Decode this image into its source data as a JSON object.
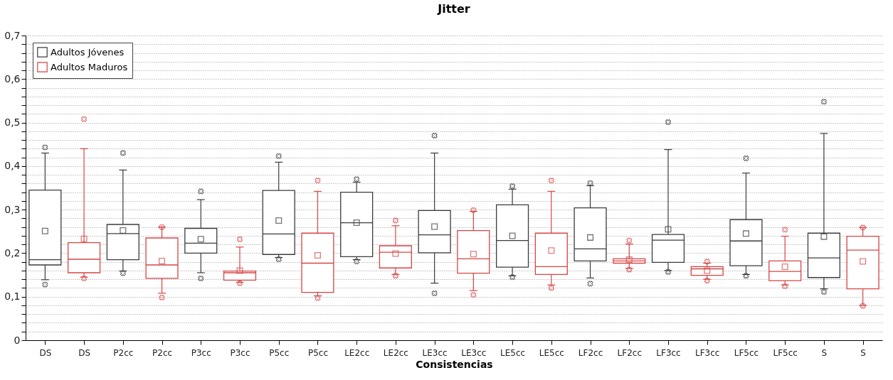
{
  "chart_data": {
    "type": "box",
    "title": "Jitter",
    "xlabel": "Consistencias",
    "categories": [
      "DS",
      "DS",
      "P2cc",
      "P2cc",
      "P3cc",
      "P3cc",
      "P5cc",
      "P5cc",
      "LE2cc",
      "LE2cc",
      "LE3cc",
      "LE3cc",
      "LE5cc",
      "LE5cc",
      "LF2cc",
      "LF2cc",
      "LF3cc",
      "LF3cc",
      "LF5cc",
      "LF5cc",
      "S",
      "S"
    ],
    "series": [
      {
        "name": "Adultos Jóvenes",
        "color": "#3c3c3c",
        "boxes": [
          {
            "low": 0.139,
            "q1": 0.173,
            "median": 0.185,
            "q3": 0.345,
            "high": 0.43,
            "mean": 0.251,
            "outliers": [
              0.443,
              0.128
            ]
          },
          null,
          {
            "low": 0.159,
            "q1": 0.185,
            "median": 0.245,
            "q3": 0.266,
            "high": 0.391,
            "mean": 0.252,
            "outliers": [
              0.43,
              0.154
            ]
          },
          null,
          {
            "low": 0.155,
            "q1": 0.2,
            "median": 0.223,
            "q3": 0.257,
            "high": 0.323,
            "mean": 0.232,
            "outliers": [
              0.342,
              0.142
            ]
          },
          null,
          {
            "low": 0.19,
            "q1": 0.197,
            "median": 0.244,
            "q3": 0.344,
            "high": 0.409,
            "mean": 0.275,
            "outliers": [
              0.423,
              0.186
            ]
          },
          null,
          {
            "low": 0.185,
            "q1": 0.192,
            "median": 0.27,
            "q3": 0.34,
            "high": 0.363,
            "mean": 0.27,
            "outliers": [
              0.37,
              0.181
            ]
          },
          null,
          {
            "low": 0.131,
            "q1": 0.201,
            "median": 0.242,
            "q3": 0.298,
            "high": 0.43,
            "mean": 0.261,
            "outliers": [
              0.47,
              0.108
            ]
          },
          null,
          {
            "low": 0.148,
            "q1": 0.168,
            "median": 0.229,
            "q3": 0.311,
            "high": 0.347,
            "mean": 0.24,
            "outliers": [
              0.354,
              0.145
            ]
          },
          null,
          {
            "low": 0.143,
            "q1": 0.182,
            "median": 0.21,
            "q3": 0.304,
            "high": 0.355,
            "mean": 0.236,
            "outliers": [
              0.361,
              0.13
            ]
          },
          null,
          {
            "low": 0.16,
            "q1": 0.179,
            "median": 0.23,
            "q3": 0.243,
            "high": 0.438,
            "mean": 0.255,
            "outliers": [
              0.501,
              0.157
            ]
          },
          null,
          {
            "low": 0.151,
            "q1": 0.171,
            "median": 0.228,
            "q3": 0.277,
            "high": 0.384,
            "mean": 0.245,
            "outliers": [
              0.418,
              0.148
            ]
          },
          null,
          {
            "low": 0.118,
            "q1": 0.144,
            "median": 0.189,
            "q3": 0.246,
            "high": 0.475,
            "mean": 0.238,
            "outliers": [
              0.548,
              0.111
            ]
          },
          null
        ]
      },
      {
        "name": "Adultos Maduros",
        "color": "#d64545",
        "boxes": [
          null,
          {
            "low": 0.145,
            "q1": 0.155,
            "median": 0.186,
            "q3": 0.224,
            "high": 0.44,
            "mean": 0.233,
            "outliers": [
              0.508,
              0.142
            ]
          },
          null,
          {
            "low": 0.108,
            "q1": 0.142,
            "median": 0.173,
            "q3": 0.235,
            "high": 0.26,
            "mean": 0.182,
            "outliers": [
              0.26,
              0.098
            ]
          },
          null,
          {
            "low": 0.133,
            "q1": 0.138,
            "median": 0.155,
            "q3": 0.159,
            "high": 0.214,
            "mean": 0.16,
            "outliers": [
              0.232,
              0.131
            ]
          },
          null,
          {
            "low": 0.102,
            "q1": 0.11,
            "median": 0.177,
            "q3": 0.246,
            "high": 0.342,
            "mean": 0.195,
            "outliers": [
              0.367,
              0.097
            ]
          },
          null,
          {
            "low": 0.151,
            "q1": 0.166,
            "median": 0.202,
            "q3": 0.217,
            "high": 0.263,
            "mean": 0.199,
            "outliers": [
              0.275,
              0.148
            ]
          },
          null,
          {
            "low": 0.114,
            "q1": 0.154,
            "median": 0.187,
            "q3": 0.252,
            "high": 0.296,
            "mean": 0.198,
            "outliers": [
              0.299,
              0.104
            ]
          },
          null,
          {
            "low": 0.127,
            "q1": 0.151,
            "median": 0.169,
            "q3": 0.246,
            "high": 0.342,
            "mean": 0.206,
            "outliers": [
              0.367,
              0.12
            ]
          },
          null,
          {
            "low": 0.165,
            "q1": 0.177,
            "median": 0.182,
            "q3": 0.187,
            "high": 0.221,
            "mean": 0.185,
            "outliers": [
              0.229,
              0.162
            ]
          },
          null,
          {
            "low": 0.14,
            "q1": 0.149,
            "median": 0.164,
            "q3": 0.169,
            "high": 0.177,
            "mean": 0.16,
            "outliers": [
              0.181,
              0.137
            ]
          },
          null,
          {
            "low": 0.127,
            "q1": 0.137,
            "median": 0.158,
            "q3": 0.182,
            "high": 0.239,
            "mean": 0.169,
            "outliers": [
              0.254,
              0.124
            ]
          },
          null,
          {
            "low": 0.08,
            "q1": 0.118,
            "median": 0.207,
            "q3": 0.239,
            "high": 0.259,
            "mean": 0.181,
            "outliers": [
              0.259,
              0.079
            ]
          }
        ]
      }
    ],
    "ylim": [
      0,
      0.7
    ],
    "yticks": [
      {
        "value": 0,
        "label": "0"
      },
      {
        "value": 0.02,
        "label": null
      },
      {
        "value": 0.04,
        "label": null
      },
      {
        "value": 0.06,
        "label": null
      },
      {
        "value": 0.08,
        "label": null
      },
      {
        "value": 0.1,
        "label": "0,1"
      },
      {
        "value": 0.12,
        "label": null
      },
      {
        "value": 0.14,
        "label": null
      },
      {
        "value": 0.16,
        "label": null
      },
      {
        "value": 0.18,
        "label": null
      },
      {
        "value": 0.2,
        "label": "0,2"
      },
      {
        "value": 0.22,
        "label": null
      },
      {
        "value": 0.24,
        "label": null
      },
      {
        "value": 0.26,
        "label": null
      },
      {
        "value": 0.28,
        "label": null
      },
      {
        "value": 0.3,
        "label": "0,3"
      },
      {
        "value": 0.32,
        "label": null
      },
      {
        "value": 0.34,
        "label": null
      },
      {
        "value": 0.36,
        "label": null
      },
      {
        "value": 0.38,
        "label": null
      },
      {
        "value": 0.4,
        "label": "0,4"
      },
      {
        "value": 0.42,
        "label": null
      },
      {
        "value": 0.44,
        "label": null
      },
      {
        "value": 0.46,
        "label": null
      },
      {
        "value": 0.48,
        "label": null
      },
      {
        "value": 0.5,
        "label": "0,5"
      },
      {
        "value": 0.52,
        "label": null
      },
      {
        "value": 0.54,
        "label": null
      },
      {
        "value": 0.56,
        "label": null
      },
      {
        "value": 0.58,
        "label": null
      },
      {
        "value": 0.6,
        "label": "0,6"
      },
      {
        "value": 0.62,
        "label": null
      },
      {
        "value": 0.64,
        "label": null
      },
      {
        "value": 0.66,
        "label": null
      },
      {
        "value": 0.68,
        "label": null
      },
      {
        "value": 0.7,
        "label": "0,7"
      }
    ],
    "grid": "y",
    "legend": "top left"
  }
}
